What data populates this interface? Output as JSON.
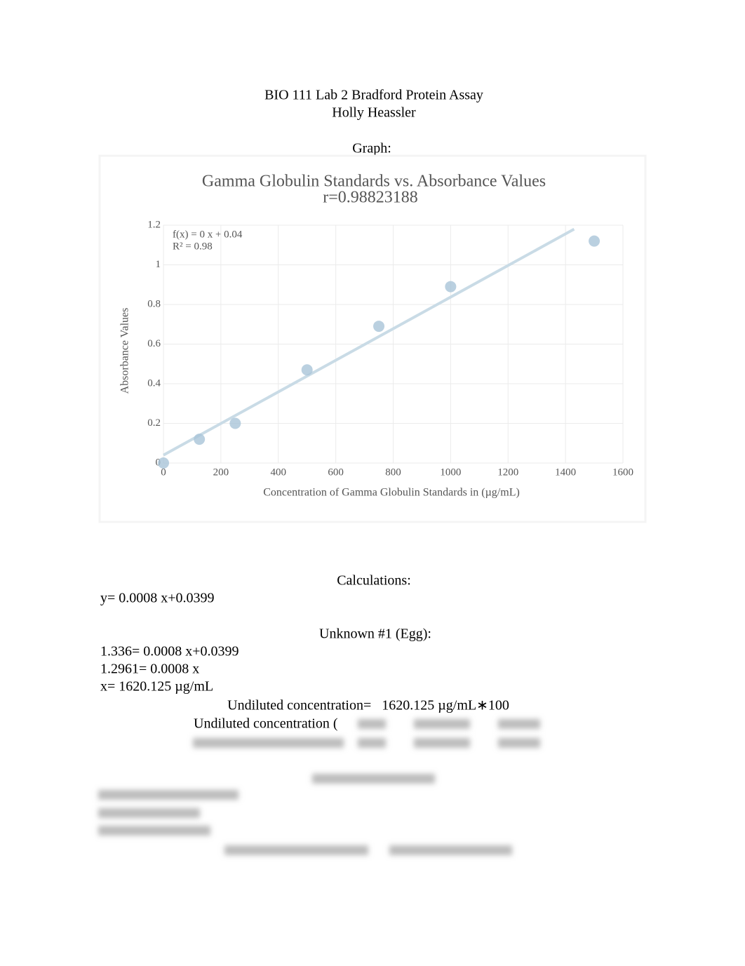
{
  "document": {
    "title": "BIO 111 Lab 2 Bradford Protein Assay",
    "author": "Holly Heassler",
    "graph_heading": "Graph:",
    "calculations_heading": "Calculations:",
    "equation": "y= 0.0008 x+0.0399",
    "unknown1_heading": "Unknown #1 (Egg):",
    "unknown1_lines": [
      "1.336= 0.0008 x+0.0399",
      "1.2961= 0.0008 x",
      "x= 1620.125 µg/mL"
    ],
    "undiluted_line": "Undiluted concentration=   1620.125 µg/mL∗100",
    "undiluted_partial": "Undiluted concentration ("
  },
  "chart_data": {
    "type": "scatter",
    "title": "Gamma Globulin Standards vs. Absorbance Values",
    "subtitle": "r=0.98823188",
    "annotations": [
      "f(x) = 0 x + 0.04",
      "R² = 0.98"
    ],
    "x_label": "Concentration of Gamma Globulin Standards in (µg/mL)",
    "y_label": "Absorbance Values",
    "series": [
      {
        "color": "#a9c4d8",
        "x": [
          0,
          125,
          250,
          500,
          750,
          1000,
          1500
        ],
        "values": [
          0.0,
          0.12,
          0.2,
          0.47,
          0.69,
          0.89,
          1.12
        ]
      },
      {
        "color": "#c9dbe6",
        "x": [
          0,
          1430
        ],
        "values": [
          0.04,
          1.18
        ]
      }
    ],
    "xlim": [
      0,
      1600
    ],
    "xticks": [
      0,
      200,
      400,
      600,
      800,
      1000,
      1200,
      1400,
      1600
    ],
    "ylim": [
      0,
      1.2
    ],
    "yticks": [
      0,
      0.2,
      0.4,
      0.6,
      0.8,
      1,
      1.2
    ],
    "grid": true
  }
}
